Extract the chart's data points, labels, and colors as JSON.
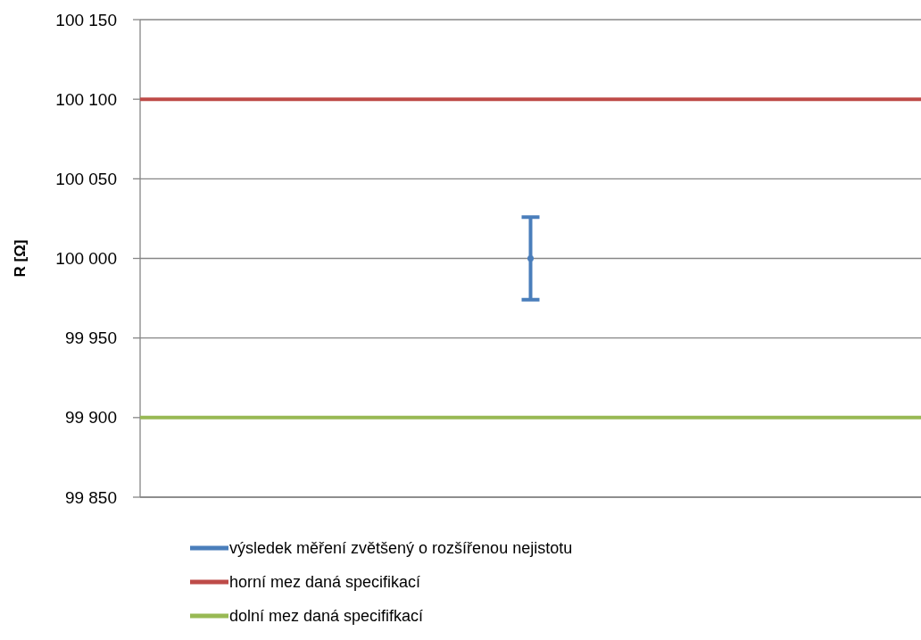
{
  "chart_data": {
    "type": "line",
    "ylabel": "R [Ω]",
    "categories": [
      null,
      null,
      null
    ],
    "ylim": [
      99850,
      100150
    ],
    "yticks": [
      {
        "value": 99850,
        "label": "99 850"
      },
      {
        "value": 99900,
        "label": "99 900"
      },
      {
        "value": 99950,
        "label": "99 950"
      },
      {
        "value": 100000,
        "label": "100 000"
      },
      {
        "value": 100050,
        "label": "100 050"
      },
      {
        "value": 100100,
        "label": "100 100"
      },
      {
        "value": 100150,
        "label": "100 150"
      }
    ],
    "grid": "y",
    "legend": "bottom",
    "series": [
      {
        "name": "výsledek měření zvětšený o rozšířenou nejistotu",
        "type": "scatter",
        "color": "#4a7ebb",
        "values": [
          null,
          100000,
          null
        ],
        "errors": [
          null,
          26,
          null
        ]
      },
      {
        "name": "horní mez daná specifikací",
        "color": "#be4b48",
        "values": [
          100100,
          100100,
          100100
        ]
      },
      {
        "name": "dolní mez daná specififkací",
        "color": "#98b954",
        "values": [
          99900,
          99900,
          99900
        ]
      }
    ]
  }
}
